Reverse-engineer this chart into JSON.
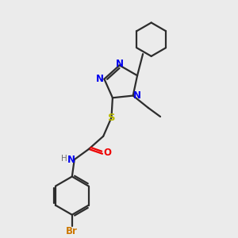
{
  "bg_color": "#ebebeb",
  "bond_color": "#2d2d2d",
  "N_color": "#0000ee",
  "S_color": "#bbbb00",
  "O_color": "#ee0000",
  "Br_color": "#cc7700",
  "H_color": "#707070",
  "line_width": 1.6,
  "figsize": [
    3.0,
    3.0
  ],
  "dpi": 100,
  "xlim": [
    0,
    10
  ],
  "ylim": [
    0,
    10
  ]
}
